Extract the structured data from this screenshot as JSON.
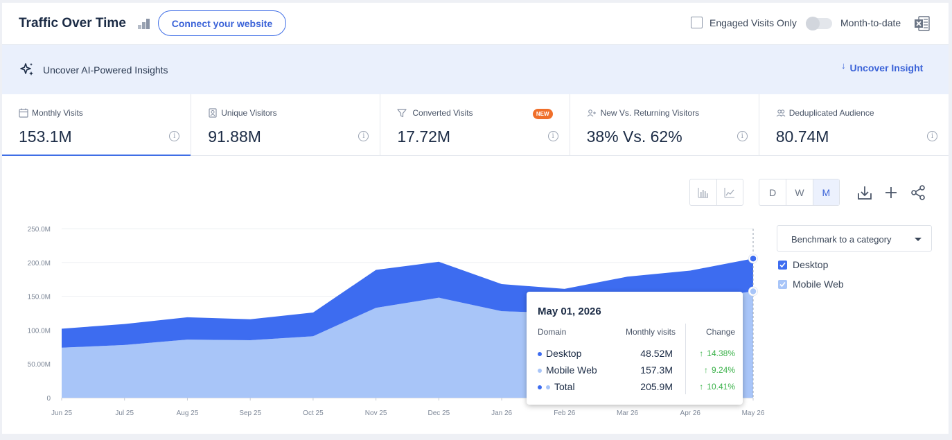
{
  "header": {
    "title": "Traffic Over Time",
    "connect_label": "Connect your website",
    "engaged_label": "Engaged Visits Only",
    "mtd_label": "Month-to-date"
  },
  "insight": {
    "label": "Uncover AI-Powered Insights",
    "cta": "Uncover Insight"
  },
  "metrics": [
    {
      "label": "Monthly Visits",
      "value": "153.1M",
      "icon": "calendar-icon",
      "active": true
    },
    {
      "label": "Unique Visitors",
      "value": "91.88M",
      "icon": "person-badge-icon"
    },
    {
      "label": "Converted Visits",
      "value": "17.72M",
      "icon": "funnel-icon",
      "badge": "NEW"
    },
    {
      "label": "New Vs. Returning Visitors",
      "value": "38% Vs. 62%",
      "icon": "person-add-icon"
    },
    {
      "label": "Deduplicated Audience",
      "value": "80.74M",
      "icon": "people-icon"
    }
  ],
  "toolbar": {
    "granularity": [
      "D",
      "W",
      "M"
    ],
    "active_granularity": "M"
  },
  "benchmark": {
    "label": "Benchmark to a category"
  },
  "legend": [
    {
      "label": "Desktop",
      "color": "#3d6cf0",
      "checked": true
    },
    {
      "label": "Mobile Web",
      "color": "#a8c5f8",
      "checked": true
    }
  ],
  "tooltip": {
    "date": "May 01, 2026",
    "col_domain": "Domain",
    "col_visits": "Monthly visits",
    "col_change": "Change",
    "rows": [
      {
        "name": "Desktop",
        "value": "48.52M",
        "change": "14.38%"
      },
      {
        "name": "Mobile Web",
        "value": "157.3M",
        "change": "9.24%"
      },
      {
        "name": "Total",
        "value": "205.9M",
        "change": "10.41%"
      }
    ]
  },
  "chart_data": {
    "type": "area",
    "stacked": true,
    "categories": [
      "Jun 25",
      "Jul 25",
      "Aug 25",
      "Sep 25",
      "Oct 25",
      "Nov 25",
      "Dec 25",
      "Jan 26",
      "Feb 26",
      "Mar 26",
      "Apr 26",
      "May 26"
    ],
    "y_ticks": [
      "250.0M",
      "200.0M",
      "150.0M",
      "100.0M",
      "50.00M",
      "0"
    ],
    "ylim": [
      0,
      250
    ],
    "grid": true,
    "series": [
      {
        "name": "Mobile Web",
        "color": "#a8c5f8",
        "values": [
          74,
          78,
          86,
          85,
          91,
          133,
          148,
          128,
          125,
          135,
          145,
          157.3
        ]
      },
      {
        "name": "Desktop",
        "color": "#3d6cf0",
        "values": [
          28,
          31,
          33,
          31,
          35,
          56,
          53,
          40,
          36,
          44,
          43,
          48.52
        ]
      }
    ]
  }
}
